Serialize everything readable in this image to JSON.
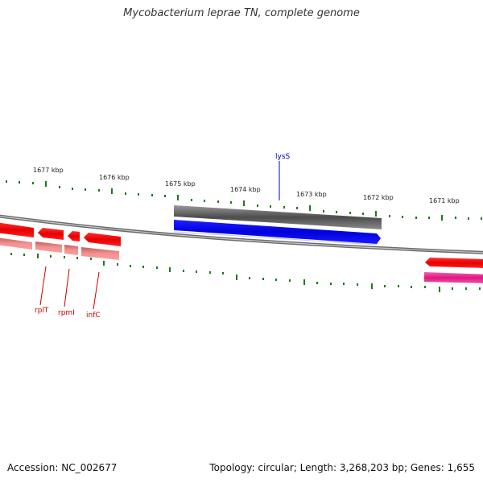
{
  "title": "Mycobacterium leprae TN, complete genome",
  "footer": {
    "accession": "Accession: NC_002677",
    "summary": "Topology: circular; Length: 3,268,203 bp; Genes: 1,655"
  },
  "scale_labels": [
    "1677 kbp",
    "1676 kbp",
    "1675 kbp",
    "1674 kbp",
    "1673 kbp",
    "1672 kbp",
    "1671 kbp"
  ],
  "gene_labels": {
    "lysS": "lysS",
    "rplT": "rplT",
    "rpmI": "rpmI",
    "infC": "infC"
  },
  "colors": {
    "genome_line": "#888888",
    "tick": "#1a7a1a",
    "gene_forward": "#ff0000",
    "gene_forward_light": "#f08080",
    "gene_lysS": "#0000dd",
    "gene_lysS_shadow": "#555555",
    "gene_pink": "#e01880",
    "label_red": "#cc0000",
    "label_blue": "#0000aa"
  }
}
